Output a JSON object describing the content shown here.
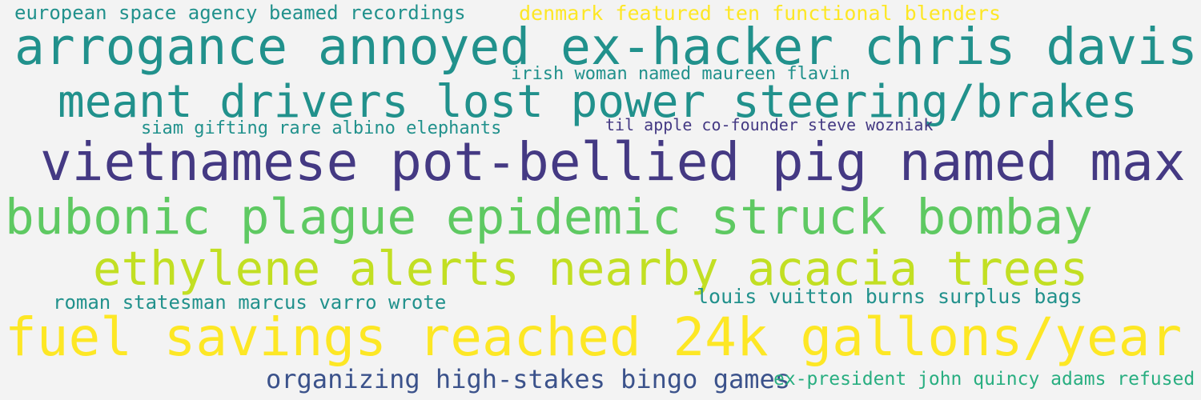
{
  "phrases": [
    {
      "text": "european space agency beamed recordings",
      "color": "#21918c"
    },
    {
      "text": "denmark featured ten functional blenders",
      "color": "#fde725"
    },
    {
      "text": "arrogance annoyed ex-hacker chris davis",
      "color": "#21918c"
    },
    {
      "text": "irish woman named maureen flavin",
      "color": "#21918c"
    },
    {
      "text": "meant drivers lost power steering/brakes",
      "color": "#21918c"
    },
    {
      "text": "siam gifting rare albino elephants",
      "color": "#21918c"
    },
    {
      "text": "til apple co-founder steve wozniak",
      "color": "#443983"
    },
    {
      "text": "vietnamese pot-bellied pig named max",
      "color": "#443983"
    },
    {
      "text": "bubonic plague epidemic struck bombay",
      "color": "#5ec962"
    },
    {
      "text": "ethylene alerts nearby acacia trees",
      "color": "#c2df23"
    },
    {
      "text": "roman statesman marcus varro wrote",
      "color": "#21918c"
    },
    {
      "text": "louis vuitton burns surplus bags",
      "color": "#21918c"
    },
    {
      "text": "fuel savings reached 24k gallons/year",
      "color": "#fde725"
    },
    {
      "text": "organizing high-stakes bingo games",
      "color": "#3b528b"
    },
    {
      "text": "ex-president john quincy adams refused",
      "color": "#28ae80"
    }
  ]
}
